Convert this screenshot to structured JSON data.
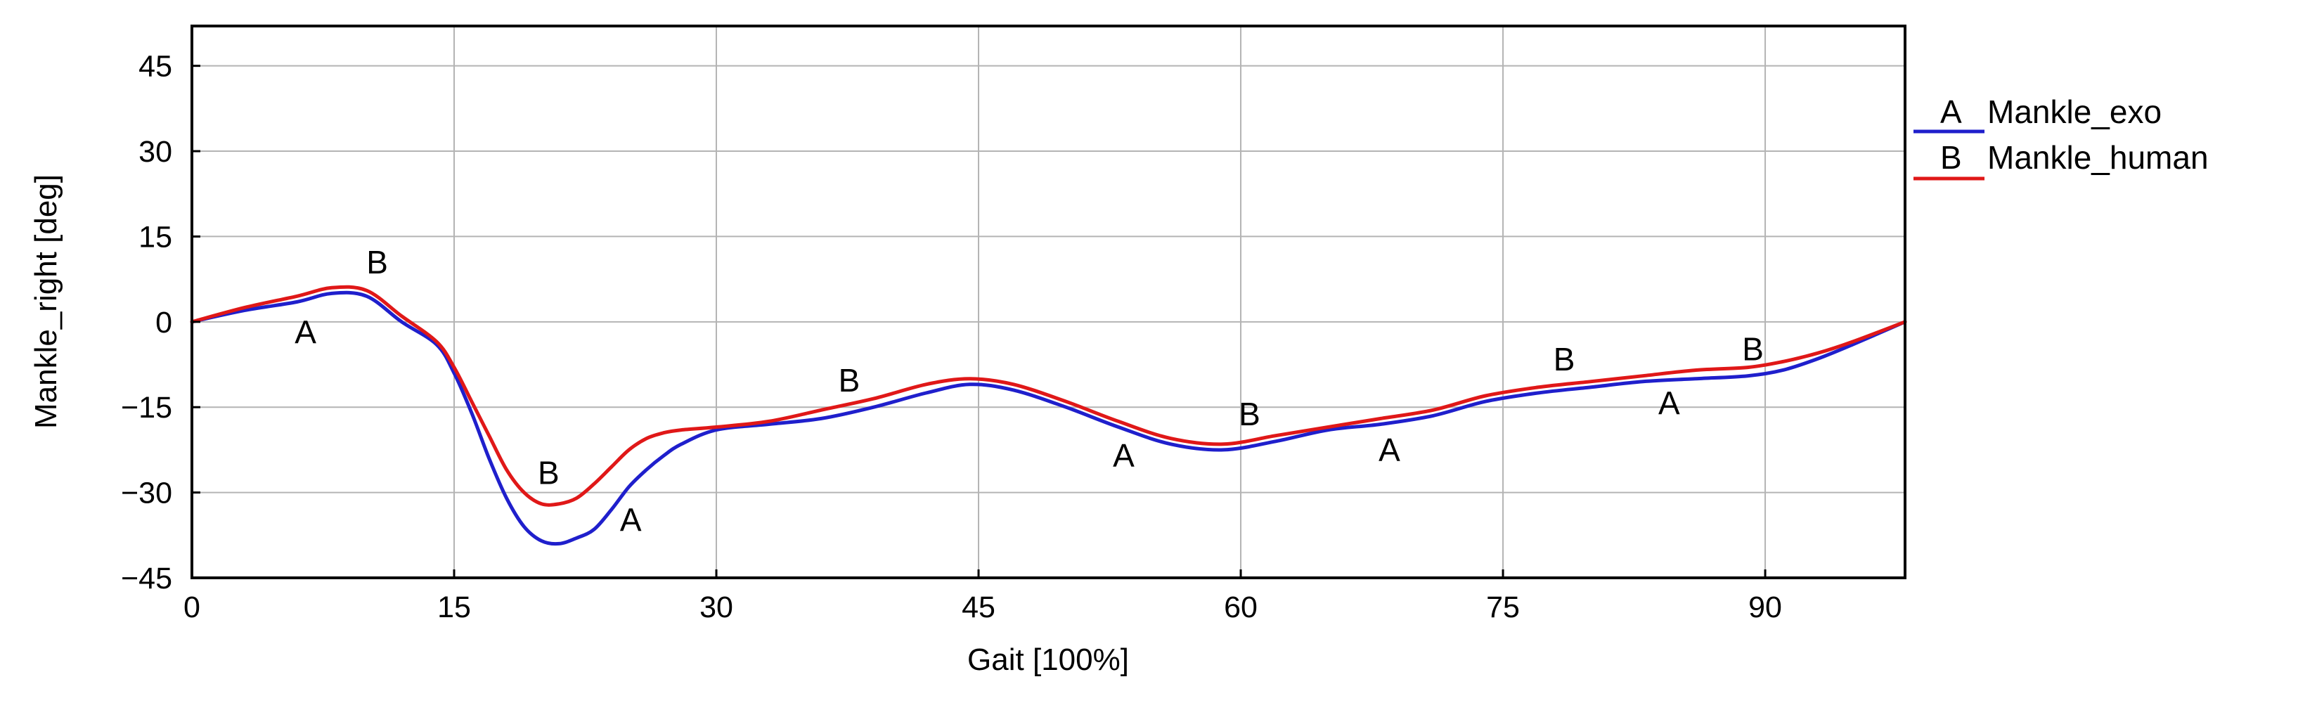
{
  "chart_data": {
    "type": "line",
    "title": "",
    "xlabel": "Gait [100%]",
    "ylabel": "Mankle_right [deg]",
    "xlim": [
      0,
      98
    ],
    "ylim": [
      -45,
      52
    ],
    "x_ticks": [
      0,
      15,
      30,
      45,
      60,
      75,
      90
    ],
    "x_tick_labels": [
      "0",
      "15",
      "30",
      "45",
      "60",
      "75",
      "90"
    ],
    "y_ticks": [
      45,
      30,
      15,
      0,
      -15,
      -30,
      -45
    ],
    "y_tick_labels": [
      "45",
      "30",
      "15",
      "0",
      "−15",
      "−30",
      "−45"
    ],
    "grid": true,
    "legend_position": "right",
    "series": [
      {
        "name": "Mankle_exo",
        "marker": "A",
        "color": "#1f1fcc",
        "x": [
          0,
          3,
          6,
          8,
          10,
          12,
          14,
          15,
          16,
          17,
          18,
          19,
          20,
          21,
          22,
          23,
          24,
          25,
          26,
          27,
          28,
          30,
          33,
          36,
          39,
          42,
          44.5,
          47,
          50,
          53,
          56,
          59,
          62,
          65,
          68,
          71,
          74,
          77,
          80,
          83,
          86,
          89,
          91,
          93,
          95,
          98
        ],
        "y": [
          0,
          2,
          3.5,
          5,
          4.5,
          0,
          -4,
          -9,
          -16,
          -24,
          -31,
          -36,
          -38.5,
          -39,
          -38,
          -36.5,
          -33,
          -29,
          -26,
          -23.5,
          -21.5,
          -19,
          -18,
          -17,
          -15,
          -12.5,
          -11,
          -12,
          -15,
          -18.5,
          -21.5,
          -22.5,
          -21,
          -19,
          -18,
          -16.5,
          -14,
          -12.5,
          -11.5,
          -10.5,
          -10,
          -9.5,
          -8.5,
          -6.5,
          -4,
          0
        ]
      },
      {
        "name": "Mankle_human",
        "marker": "B",
        "color": "#e01818",
        "x": [
          0,
          3,
          6,
          8,
          10,
          12,
          14,
          15,
          16,
          17,
          18,
          19,
          20,
          21,
          22,
          23,
          24,
          25,
          26,
          27,
          28,
          30,
          33,
          36,
          39,
          42,
          44.5,
          47,
          50,
          53,
          56,
          59,
          62,
          65,
          68,
          71,
          74,
          77,
          80,
          83,
          86,
          89,
          91,
          93,
          95,
          98
        ],
        "y": [
          0,
          2.5,
          4.5,
          6,
          5.5,
          1,
          -3.5,
          -8,
          -14,
          -20,
          -26,
          -30,
          -32,
          -32,
          -31,
          -28.5,
          -25.5,
          -22.5,
          -20.5,
          -19.5,
          -19,
          -18.5,
          -17.5,
          -15.5,
          -13.5,
          -11,
          -10,
          -11,
          -14,
          -17.5,
          -20.5,
          -21.5,
          -20,
          -18.5,
          -17,
          -15.5,
          -13,
          -11.5,
          -10.5,
          -9.5,
          -8.5,
          -8,
          -7,
          -5.5,
          -3.5,
          0
        ]
      }
    ],
    "annotations": [
      {
        "text": "A",
        "x": 6.5,
        "y": -1.8
      },
      {
        "text": "A",
        "x": 25.1,
        "y": -34.8
      },
      {
        "text": "A",
        "x": 53.3,
        "y": -23.5
      },
      {
        "text": "A",
        "x": 68.5,
        "y": -22.5
      },
      {
        "text": "A",
        "x": 84.5,
        "y": -14.3
      },
      {
        "text": "B",
        "x": 10.6,
        "y": 10.5
      },
      {
        "text": "B",
        "x": 20.4,
        "y": -26.5
      },
      {
        "text": "B",
        "x": 37.6,
        "y": -10.3
      },
      {
        "text": "B",
        "x": 60.5,
        "y": -16.2
      },
      {
        "text": "B",
        "x": 78.5,
        "y": -6.6
      },
      {
        "text": "B",
        "x": 89.3,
        "y": -4.8
      }
    ]
  }
}
